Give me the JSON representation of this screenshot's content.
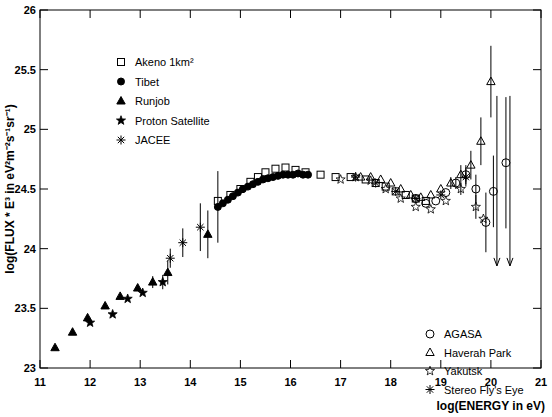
{
  "chart_data": {
    "type": "scatter",
    "x_label": "log(ENERGY in eV)",
    "y_label": "log(FLUX * E³ in eV²m⁻²s⁻¹sr⁻¹)",
    "xlim": [
      11,
      21
    ],
    "ylim": [
      23,
      26
    ],
    "xticks": [
      11,
      12,
      13,
      14,
      15,
      16,
      17,
      18,
      19,
      20,
      21
    ],
    "yticks": [
      23,
      23.5,
      24,
      24.5,
      25,
      25.5,
      26
    ],
    "grid": false,
    "series": [
      {
        "name": "Akeno 1km²",
        "color": "#000000",
        "marker": "open-square",
        "x": [
          14.55,
          14.8,
          15.0,
          15.2,
          15.35,
          15.5,
          15.7,
          15.9,
          16.1,
          16.3,
          16.6,
          16.9,
          17.2,
          17.5,
          17.7,
          17.9,
          18.1,
          18.3,
          18.5,
          18.7
        ],
        "values": [
          24.4,
          24.45,
          24.5,
          24.56,
          24.6,
          24.64,
          24.67,
          24.68,
          24.66,
          24.64,
          24.62,
          24.6,
          24.6,
          24.58,
          24.55,
          24.52,
          24.48,
          24.45,
          24.42,
          24.4
        ],
        "errors": [
          null,
          null,
          null,
          null,
          null,
          null,
          null,
          null,
          null,
          null,
          null,
          null,
          null,
          null,
          null,
          null,
          null,
          null,
          null,
          null
        ]
      },
      {
        "name": "Tibet",
        "color": "#000000",
        "marker": "circle",
        "x": [
          14.55,
          14.65,
          14.75,
          14.85,
          14.95,
          15.05,
          15.15,
          15.25,
          15.35,
          15.45,
          15.55,
          15.65,
          15.75,
          15.85,
          15.95,
          16.05,
          16.15,
          16.25,
          16.35
        ],
        "values": [
          24.35,
          24.38,
          24.41,
          24.44,
          24.47,
          24.5,
          24.52,
          24.54,
          24.56,
          24.58,
          24.59,
          24.6,
          24.61,
          24.62,
          24.62,
          24.62,
          24.63,
          24.62,
          24.62
        ],
        "errors": [
          0.3,
          null,
          null,
          null,
          null,
          null,
          null,
          null,
          null,
          null,
          null,
          null,
          null,
          null,
          null,
          null,
          null,
          null,
          null
        ]
      },
      {
        "name": "Runjob",
        "color": "#000000",
        "marker": "triangle",
        "x": [
          11.3,
          11.65,
          11.95,
          12.3,
          12.6,
          12.95,
          13.25,
          13.55,
          14.35
        ],
        "values": [
          23.17,
          23.3,
          23.42,
          23.52,
          23.6,
          23.67,
          23.72,
          23.8,
          24.12
        ],
        "errors": [
          null,
          null,
          null,
          null,
          null,
          null,
          0.05,
          0.1,
          0.2
        ]
      },
      {
        "name": "Proton Satellite",
        "color": "#000000",
        "marker": "star",
        "x": [
          12.0,
          12.45,
          12.75,
          13.05,
          13.45
        ],
        "values": [
          23.38,
          23.45,
          23.58,
          23.63,
          23.72
        ],
        "errors": [
          null,
          null,
          null,
          null,
          0.06
        ]
      },
      {
        "name": "JACEE",
        "color": "#000000",
        "marker": "asterisk",
        "x": [
          13.6,
          13.85,
          14.2
        ],
        "values": [
          23.92,
          24.05,
          24.18
        ],
        "errors": [
          0.08,
          0.12,
          0.2
        ]
      },
      {
        "name": "AGASA",
        "color": "#000000",
        "marker": "open-circle",
        "x": [
          18.5,
          18.7,
          18.9,
          19.1,
          19.3,
          19.5,
          19.7,
          19.9,
          20.05,
          20.3
        ],
        "values": [
          24.42,
          24.38,
          24.4,
          24.47,
          24.55,
          24.62,
          24.5,
          24.22,
          24.48,
          24.72
        ],
        "errors": [
          null,
          null,
          null,
          null,
          0.05,
          0.08,
          0.12,
          0.25,
          0.3,
          0.55
        ]
      },
      {
        "name": "Haverah Park",
        "color": "#000000",
        "marker": "open-triangle",
        "x": [
          17.4,
          17.6,
          17.8,
          18.0,
          18.2,
          18.4,
          18.6,
          18.8,
          19.0,
          19.2,
          19.4,
          19.6,
          19.8,
          20.0
        ],
        "values": [
          24.6,
          24.6,
          24.58,
          24.55,
          24.5,
          24.45,
          24.43,
          24.45,
          24.5,
          24.55,
          24.62,
          24.7,
          24.9,
          25.4
        ],
        "errors": [
          null,
          null,
          null,
          null,
          null,
          null,
          null,
          null,
          null,
          0.05,
          0.08,
          0.12,
          0.2,
          0.3
        ]
      },
      {
        "name": "Yakutsk",
        "color": "#000000",
        "marker": "open-star",
        "x": [
          17.0,
          17.3,
          17.6,
          17.9,
          18.2,
          18.5,
          18.8,
          19.1,
          19.4,
          19.7,
          19.85
        ],
        "values": [
          24.58,
          24.6,
          24.57,
          24.5,
          24.42,
          24.35,
          24.33,
          24.4,
          24.5,
          24.35,
          24.25
        ],
        "errors": [
          null,
          null,
          null,
          null,
          null,
          null,
          null,
          null,
          0.05,
          0.1,
          null
        ]
      },
      {
        "name": "Stereo Fly's Eye",
        "color": "#000000",
        "marker": "asterisk",
        "x": [
          17.3,
          17.7,
          18.1,
          18.5,
          19.0,
          19.5
        ],
        "values": [
          24.6,
          24.55,
          24.48,
          24.42,
          24.45,
          24.6
        ],
        "errors": [
          null,
          null,
          null,
          null,
          null,
          0.08
        ]
      }
    ],
    "upper_limits": {
      "x": [
        20.12,
        20.38
      ],
      "values": [
        25.28,
        25.28
      ]
    }
  }
}
